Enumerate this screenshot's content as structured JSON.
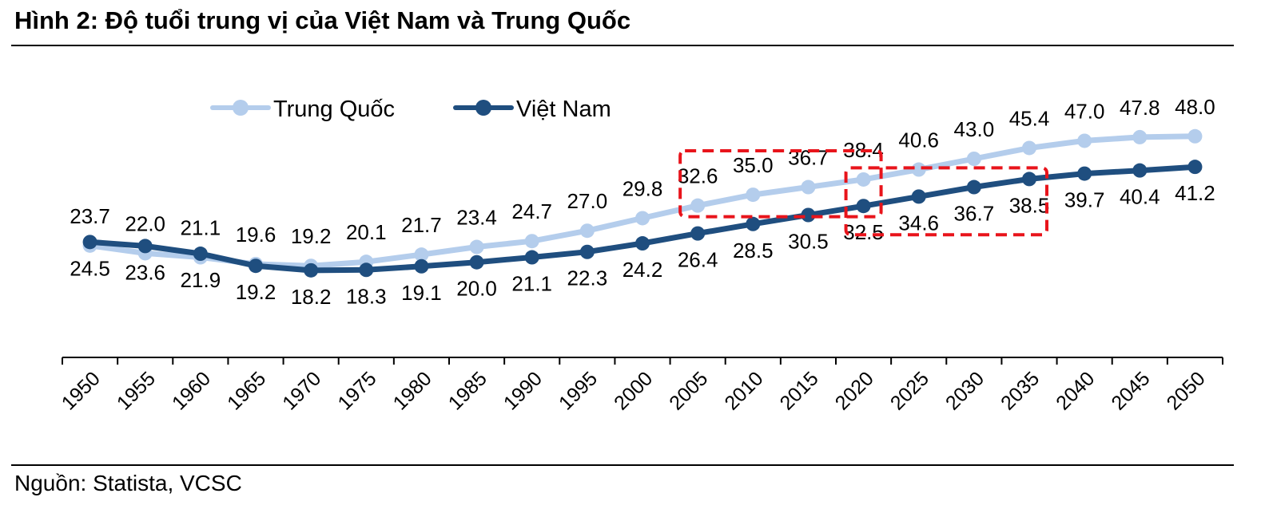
{
  "figure": {
    "title": "Hình 2: Độ tuổi trung vị của Việt Nam và Trung Quốc",
    "source": "Nguồn: Statista, VCSC"
  },
  "chart_data": {
    "type": "line",
    "x": [
      "1950",
      "1955",
      "1960",
      "1965",
      "1970",
      "1975",
      "1980",
      "1985",
      "1990",
      "1995",
      "2000",
      "2005",
      "2010",
      "2015",
      "2020",
      "2025",
      "2030",
      "2035",
      "2040",
      "2045",
      "2050"
    ],
    "series": [
      {
        "name": "Trung Quốc",
        "color": "#b4cdec",
        "values": [
          23.7,
          22.0,
          21.1,
          19.6,
          19.2,
          20.1,
          21.7,
          23.4,
          24.7,
          27.0,
          29.8,
          32.6,
          35.0,
          36.7,
          38.4,
          40.6,
          43.0,
          45.4,
          47.0,
          47.8,
          48.0
        ],
        "label_position": "above"
      },
      {
        "name": "Việt Nam",
        "color": "#1f4e7f",
        "values": [
          24.5,
          23.6,
          21.9,
          19.2,
          18.2,
          18.3,
          19.1,
          20.0,
          21.1,
          22.3,
          24.2,
          26.4,
          28.5,
          30.5,
          32.5,
          34.6,
          36.7,
          38.5,
          39.7,
          40.4,
          41.2
        ],
        "label_position": "below"
      }
    ],
    "legend": "top-left",
    "grid": false,
    "highlight_color": "#e8141b",
    "highlights": [
      {
        "from": "2005",
        "to": "2020",
        "series": "Trung Quốc"
      },
      {
        "from": "2020",
        "to": "2035",
        "series": "Việt Nam"
      }
    ]
  }
}
